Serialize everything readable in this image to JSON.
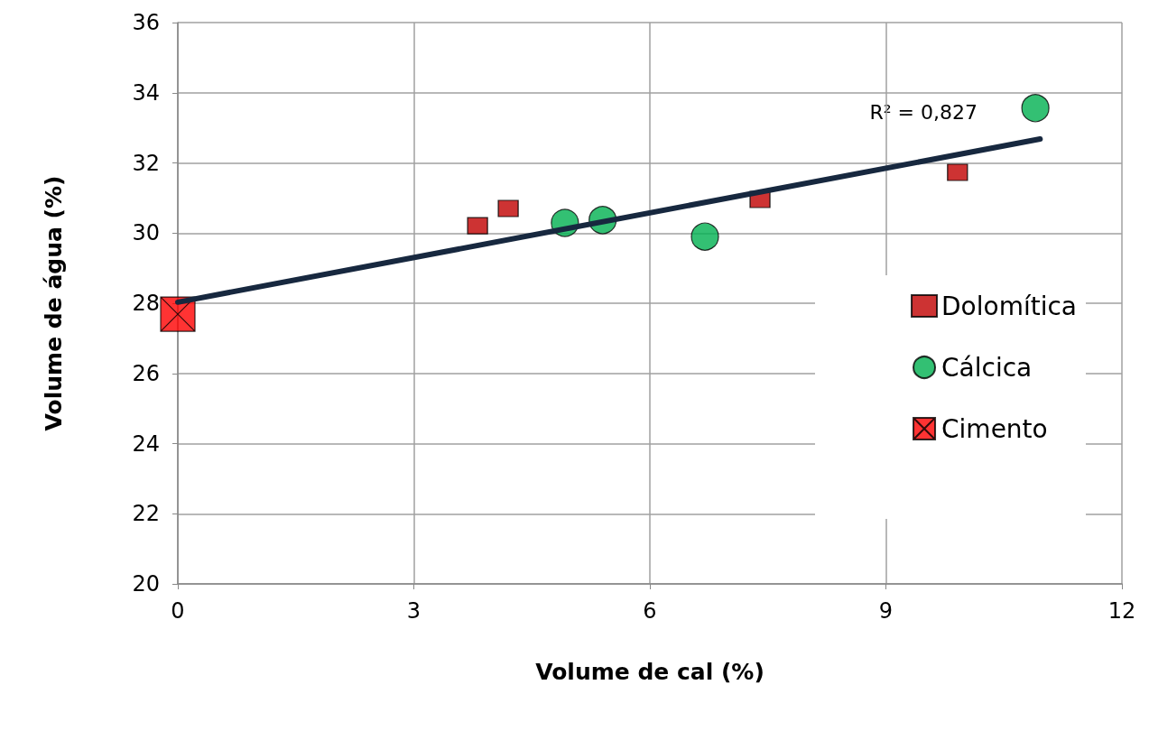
{
  "chart_data": {
    "type": "scatter",
    "xlabel": "Volume de cal (%)",
    "ylabel": "Volume de água (%)",
    "xlim": [
      0,
      12
    ],
    "xticks": [
      0,
      3,
      6,
      9,
      12
    ],
    "ylim": [
      20,
      36
    ],
    "yticks": [
      20,
      22,
      24,
      26,
      28,
      30,
      32,
      34,
      36
    ],
    "grid": true,
    "legend": "right",
    "annotations": [
      "R² = 0,827"
    ],
    "series": [
      {
        "name": "Dolomítica",
        "color": "#c00000",
        "marker": "square",
        "x": [
          3.81,
          4.2,
          5.16,
          7.4,
          9.91
        ],
        "values": [
          30.21,
          30.7,
          null,
          30.96,
          31.73
        ]
      },
      {
        "name": "Cálcica",
        "color": "#00b050",
        "marker": "circle",
        "x": [
          4.92,
          5.4,
          6.7,
          10.9
        ],
        "values": [
          30.29,
          30.37,
          29.9,
          33.56
        ]
      },
      {
        "name": "Cimento",
        "color": "#ff0000",
        "marker": "cross",
        "x": [
          0
        ],
        "values": [
          27.69
        ]
      },
      {
        "type": "line",
        "color": "#17283f",
        "marker": "none",
        "line_style": "solid",
        "x": [
          0,
          10.96
        ],
        "values": [
          28.03,
          32.68
        ]
      }
    ]
  }
}
